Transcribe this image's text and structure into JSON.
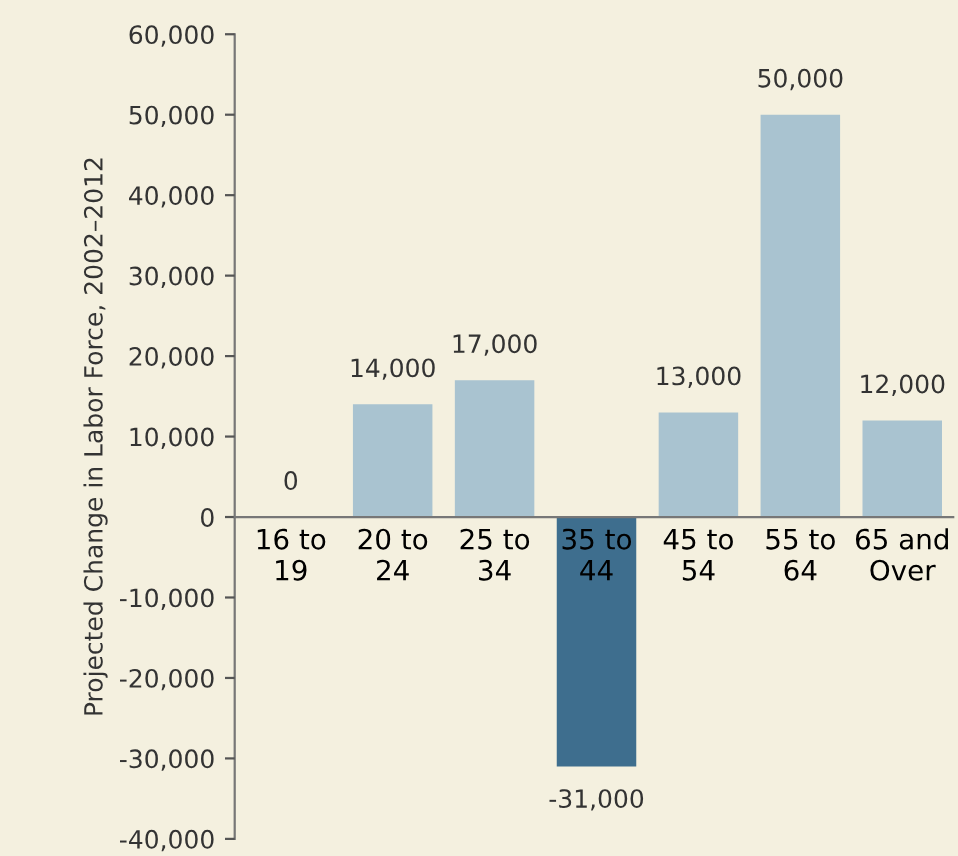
{
  "chart_data": {
    "type": "bar",
    "ylabel": "Projected Change in Labor Force, 2002–2012",
    "categories": [
      "16 to\n19",
      "20 to\n24",
      "25 to\n34",
      "35 to\n44",
      "45 to\n54",
      "55 to\n64",
      "65 and\nOver"
    ],
    "values": [
      0,
      14000,
      17000,
      -31000,
      13000,
      50000,
      12000
    ],
    "value_labels": [
      "0",
      "14,000",
      "17,000",
      "-31,000",
      "13,000",
      "50,000",
      "12,000"
    ],
    "colors": [
      "#a9c3d0",
      "#a9c3d0",
      "#a9c3d0",
      "#3e6e8e",
      "#a9c3d0",
      "#a9c3d0",
      "#a9c3d0"
    ],
    "ylim": [
      -40000,
      60000
    ],
    "yticks": [
      {
        "value": -40000,
        "label": "-40,000"
      },
      {
        "value": -30000,
        "label": "-30,000"
      },
      {
        "value": -20000,
        "label": "-20,000"
      },
      {
        "value": -10000,
        "label": "-10,000"
      },
      {
        "value": 0,
        "label": "0"
      },
      {
        "value": 10000,
        "label": "10,000"
      },
      {
        "value": 20000,
        "label": "20,000"
      },
      {
        "value": 30000,
        "label": "30,000"
      },
      {
        "value": 40000,
        "label": "40,000"
      },
      {
        "value": 50000,
        "label": "50,000"
      },
      {
        "value": 60000,
        "label": "60,000"
      }
    ],
    "grid": false
  }
}
